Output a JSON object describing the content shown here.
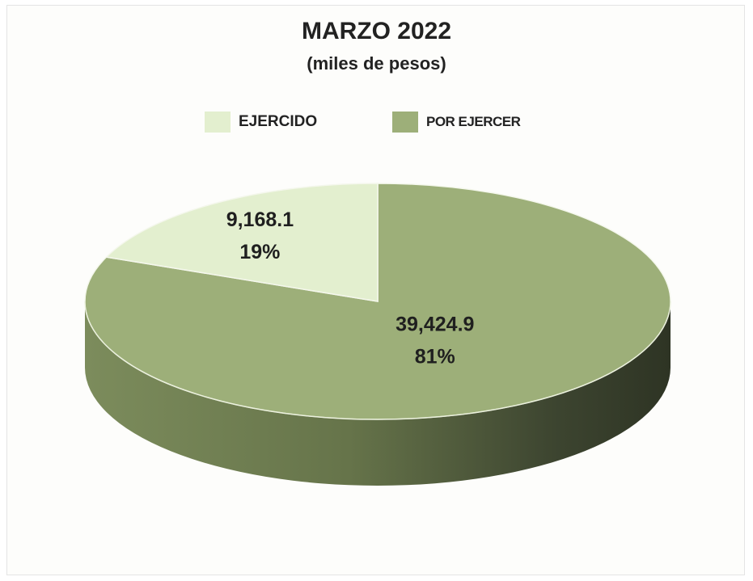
{
  "chart_data": {
    "type": "pie",
    "title": "MARZO 2022",
    "subtitle": "(miles de pesos)",
    "legend_position": "top",
    "categories": [
      "EJERCIDO",
      "POR EJERCER"
    ],
    "values": [
      9168.1,
      39424.9
    ],
    "value_labels": [
      "9,168.1",
      "39,424.9"
    ],
    "percent_labels": [
      "19%",
      "81%"
    ],
    "colors": [
      "#e3efcf",
      "#9daf79"
    ],
    "three_d": true
  }
}
